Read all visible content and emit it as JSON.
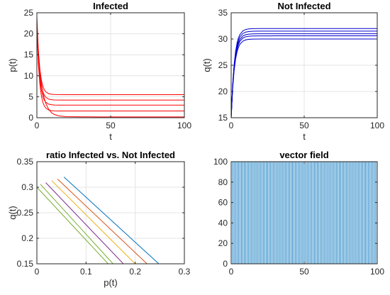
{
  "chart_data": [
    {
      "type": "line",
      "title": "Infected",
      "xlabel": "t",
      "ylabel": "p(t)",
      "xlim": [
        0,
        100
      ],
      "ylim": [
        0,
        25
      ],
      "xticks": [
        "0",
        "50",
        "100"
      ],
      "yticks": [
        "0",
        "5",
        "10",
        "15",
        "20",
        "25"
      ],
      "grid": true,
      "model": "exp_decay",
      "t": [
        0,
        1,
        2,
        3,
        4,
        5,
        6,
        8,
        10,
        12,
        15,
        20,
        30,
        40,
        60,
        80,
        100
      ],
      "series": [
        {
          "start": 24,
          "plateau": 5.5,
          "rate": 0.55,
          "color": "#ff0000"
        },
        {
          "start": 23,
          "plateau": 4.2,
          "rate": 0.55,
          "color": "#ff0000"
        },
        {
          "start": 22,
          "plateau": 3.0,
          "rate": 0.55,
          "color": "#ff0000"
        },
        {
          "start": 21,
          "plateau": 1.6,
          "rate": 0.55,
          "color": "#ff0000"
        },
        {
          "start": 20,
          "plateau": 0.2,
          "rate": 0.3,
          "color": "#ff0000"
        }
      ]
    },
    {
      "type": "line",
      "title": "Not Infected",
      "xlabel": "t",
      "ylabel": "q(t)",
      "xlim": [
        0,
        100
      ],
      "ylim": [
        15,
        35
      ],
      "xticks": [
        "0",
        "50",
        "100"
      ],
      "yticks": [
        "15",
        "20",
        "25",
        "30",
        "35"
      ],
      "grid": true,
      "model": "exp_rise",
      "t": [
        0,
        1,
        2,
        3,
        4,
        5,
        6,
        8,
        10,
        12,
        15,
        20,
        30,
        40,
        60,
        80,
        100
      ],
      "series": [
        {
          "start": 15,
          "plateau": 32.0,
          "rate": 0.45,
          "color": "#0000cc"
        },
        {
          "start": 15,
          "plateau": 31.5,
          "rate": 0.45,
          "color": "#0000cc"
        },
        {
          "start": 15,
          "plateau": 31.0,
          "rate": 0.45,
          "color": "#0000cc"
        },
        {
          "start": 15,
          "plateau": 30.6,
          "rate": 0.45,
          "color": "#0000cc"
        },
        {
          "start": 15,
          "plateau": 30.0,
          "rate": 0.45,
          "color": "#0000cc"
        }
      ]
    },
    {
      "type": "line",
      "title": "ratio Infected vs. Not Infected",
      "xlabel": "p(t)",
      "ylabel": "q(t)",
      "xlim": [
        0,
        0.3
      ],
      "ylim": [
        0.15,
        0.35
      ],
      "xticks": [
        "0",
        "0.1",
        "0.2",
        "0.3"
      ],
      "yticks": [
        "0.15",
        "0.2",
        "0.25",
        "0.3",
        "0.35"
      ],
      "grid": true,
      "series": [
        {
          "x": [
            0.055,
            0.248
          ],
          "y": [
            0.32,
            0.15
          ],
          "color": "#0072bd"
        },
        {
          "x": [
            0.042,
            0.224
          ],
          "y": [
            0.316,
            0.15
          ],
          "color": "#d95319"
        },
        {
          "x": [
            0.03,
            0.2
          ],
          "y": [
            0.313,
            0.15
          ],
          "color": "#edb120"
        },
        {
          "x": [
            0.018,
            0.176
          ],
          "y": [
            0.309,
            0.15
          ],
          "color": "#7e2f8e"
        },
        {
          "x": [
            0.007,
            0.155
          ],
          "y": [
            0.306,
            0.15
          ],
          "color": "#77ac30"
        },
        {
          "x": [
            0.0,
            0.145
          ],
          "y": [
            0.3,
            0.15
          ],
          "color": "#77ac30"
        }
      ]
    },
    {
      "type": "vector_field",
      "title": "vector field",
      "xlabel": "",
      "ylabel": "",
      "xlim": [
        0,
        100
      ],
      "ylim": [
        0,
        100
      ],
      "xticks": [
        "0",
        "50",
        "100"
      ],
      "yticks": [
        "0",
        "20",
        "40",
        "60",
        "80",
        "100"
      ],
      "grid": false,
      "columns": 101,
      "color": "#0072bd"
    }
  ]
}
